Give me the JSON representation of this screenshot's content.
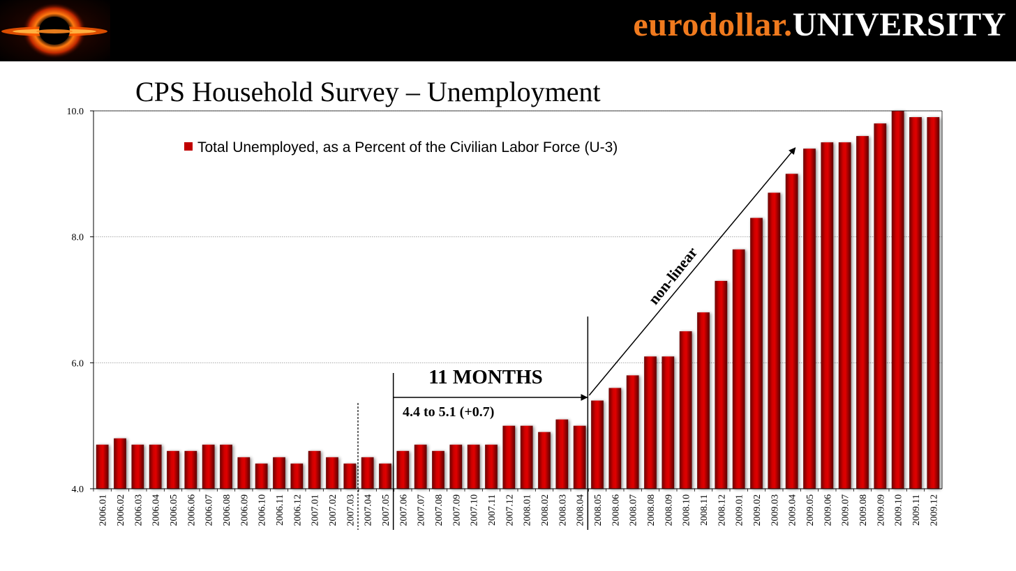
{
  "header": {
    "brand_part1": "eurodollar.",
    "brand_part2": "UNIVERSITY",
    "logo_icon": "black-hole-logo-icon",
    "accent_color": "#f07a1e"
  },
  "chart_data": {
    "type": "bar",
    "title": "CPS Household Survey – Unemployment",
    "legend": "Total Unemployed, as a Percent of the Civilian Labor Force (U-3)",
    "legend_position": "top-left",
    "bar_color": "#c00000",
    "ylim": [
      4.0,
      10.0
    ],
    "yticks": [
      "4.0",
      "6.0",
      "8.0",
      "10.0"
    ],
    "ytick_values": [
      4.0,
      6.0,
      8.0,
      10.0
    ],
    "grid": true,
    "categories": [
      "2006.01",
      "2006.02",
      "2006.03",
      "2006.04",
      "2006.05",
      "2006.06",
      "2006.07",
      "2006.08",
      "2006.09",
      "2006.10",
      "2006.11",
      "2006.12",
      "2007.01",
      "2007.02",
      "2007.03",
      "2007.04",
      "2007.05",
      "2007.06",
      "2007.07",
      "2007.08",
      "2007.09",
      "2007.10",
      "2007.11",
      "2007.12",
      "2008.01",
      "2008.02",
      "2008.03",
      "2008.04",
      "2008.05",
      "2008.06",
      "2008.07",
      "2008.08",
      "2008.09",
      "2008.10",
      "2008.11",
      "2008.12",
      "2009.01",
      "2009.02",
      "2009.03",
      "2009.04",
      "2009.05",
      "2009.06",
      "2009.07",
      "2009.08",
      "2009.09",
      "2009.10",
      "2009.11",
      "2009.12"
    ],
    "values": [
      4.7,
      4.8,
      4.7,
      4.7,
      4.6,
      4.6,
      4.7,
      4.7,
      4.5,
      4.4,
      4.5,
      4.4,
      4.6,
      4.5,
      4.4,
      4.5,
      4.4,
      4.6,
      4.7,
      4.6,
      4.7,
      4.7,
      4.7,
      5.0,
      5.0,
      4.9,
      5.1,
      5.0,
      5.4,
      5.6,
      5.8,
      6.1,
      6.1,
      6.5,
      6.8,
      7.3,
      7.8,
      8.3,
      8.7,
      9.0,
      9.4,
      9.5,
      9.5,
      9.6,
      9.8,
      10.0,
      9.9,
      9.9
    ],
    "annotations": {
      "months_label": "11 MONTHS",
      "change_label": "4.4 to 5.1 (+0.7)",
      "trend_label": "non-linear"
    }
  }
}
